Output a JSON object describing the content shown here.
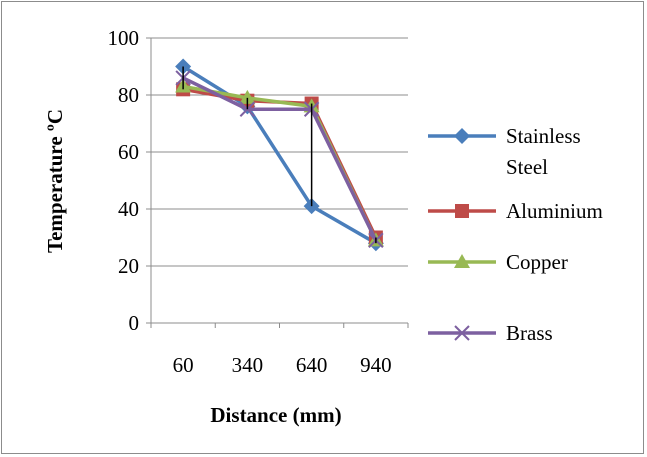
{
  "chart_data": {
    "type": "line",
    "title": "",
    "xlabel": "Distance (mm)",
    "ylabel": "Temperature ºC",
    "categories": [
      "60",
      "340",
      "640",
      "940"
    ],
    "ylim": [
      0,
      100
    ],
    "yticks": [
      0,
      20,
      40,
      60,
      80,
      100
    ],
    "grid": "horizontal",
    "legend_position": "right",
    "series": [
      {
        "name": "Stainless Steel",
        "values": [
          90,
          76,
          41,
          28
        ],
        "color": "#4A7EBB",
        "marker": "diamond"
      },
      {
        "name": "Aluminium",
        "values": [
          82,
          78,
          77,
          30
        ],
        "color": "#BE4B48",
        "marker": "square"
      },
      {
        "name": "Copper",
        "values": [
          83,
          79,
          76,
          29
        ],
        "color": "#98B954",
        "marker": "triangle"
      },
      {
        "name": "Brass",
        "values": [
          86,
          75,
          75,
          29
        ],
        "color": "#7D60A0",
        "marker": "x"
      }
    ],
    "range_lines": [
      {
        "category": "60",
        "low": 82,
        "high": 90
      },
      {
        "category": "340",
        "low": 75,
        "high": 79
      },
      {
        "category": "640",
        "low": 41,
        "high": 77
      },
      {
        "category": "940",
        "low": 28,
        "high": 30
      }
    ]
  }
}
